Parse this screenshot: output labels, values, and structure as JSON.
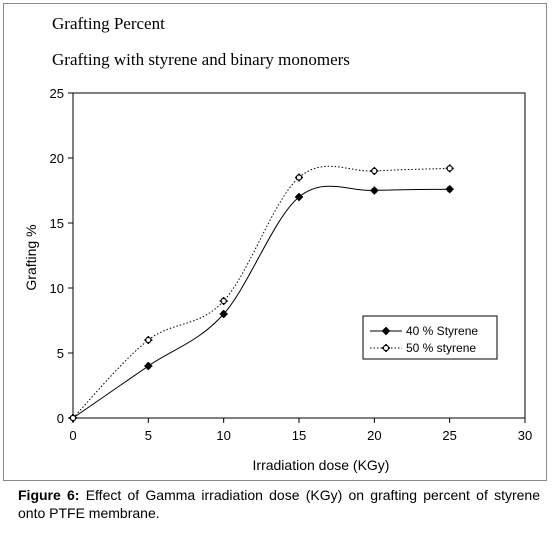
{
  "headings": {
    "title": "Grafting Percent",
    "subtitle": "Grafting with styrene and binary monomers"
  },
  "caption": {
    "label": "Figure 6:",
    "text": " Effect of Gamma irradiation dose (KGy)  on grafting percent of styrene onto PTFE membrane."
  },
  "chart_data": {
    "type": "line",
    "title": "Grafting with styrene and binary monomers",
    "xlabel": "Irradiation dose (KGy)",
    "ylabel": "Grafting %",
    "xlim": [
      0,
      30
    ],
    "ylim": [
      0,
      25
    ],
    "x_ticks": [
      0,
      5,
      10,
      15,
      20,
      25,
      30
    ],
    "y_ticks": [
      0,
      5,
      10,
      15,
      20,
      25
    ],
    "grid": false,
    "legend_position": "center-right",
    "series": [
      {
        "name": "40 % Styrene",
        "x": [
          0,
          5,
          10,
          15,
          20,
          25
        ],
        "values": [
          0,
          4,
          8,
          17,
          17.5,
          17.6
        ],
        "line_style": "solid",
        "marker": "filled"
      },
      {
        "name": "50 % styrene",
        "x": [
          0,
          5,
          10,
          15,
          20,
          25
        ],
        "values": [
          0,
          6,
          9,
          18.5,
          19,
          19.2
        ],
        "line_style": "dotted",
        "marker": "open"
      }
    ]
  }
}
